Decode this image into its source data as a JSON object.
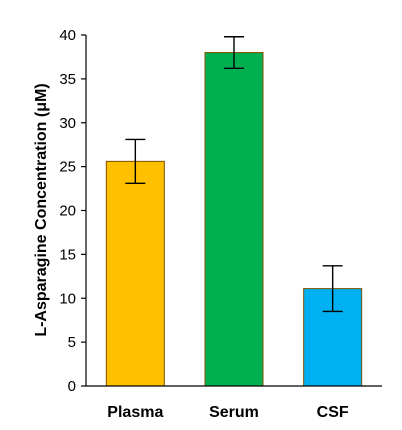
{
  "chart_data": {
    "type": "bar",
    "title": "",
    "xlabel": "",
    "ylabel": "L-Asparagine Concentration (μM)",
    "categories": [
      "Plasma",
      "Serum",
      "CSF"
    ],
    "values": [
      25.6,
      38.0,
      11.1
    ],
    "errors": [
      2.5,
      1.8,
      2.6
    ],
    "ylim": [
      0,
      40
    ],
    "yticks": [
      0,
      5,
      10,
      15,
      20,
      25,
      30,
      35,
      40
    ],
    "grid": false,
    "legend": "none",
    "colors": {
      "bars": [
        "#FFC000",
        "#00B050",
        "#00B0F0"
      ],
      "bar_edge": "#7F4F00",
      "axis": "#000000"
    }
  }
}
